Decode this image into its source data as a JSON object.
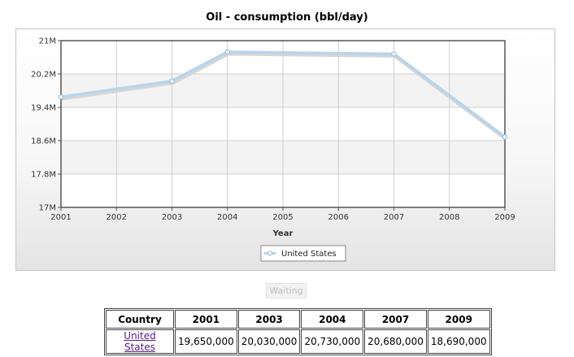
{
  "chart_data": {
    "type": "line",
    "title": "Oil - consumption (bbl/day)",
    "xlabel": "Year",
    "ylabel": "",
    "x_ticks": [
      "2001",
      "2002",
      "2003",
      "2004",
      "2005",
      "2006",
      "2007",
      "2008",
      "2009"
    ],
    "x_range": [
      2001,
      2009
    ],
    "y_ticks": [
      "17M",
      "17.8M",
      "18.6M",
      "19.4M",
      "20.2M",
      "21M"
    ],
    "ylim": [
      17000000,
      21000000
    ],
    "grid": true,
    "legend_position": "bottom-center",
    "series": [
      {
        "name": "United States",
        "color": "#b8d4ea",
        "x": [
          2001,
          2003,
          2004,
          2007,
          2009
        ],
        "values": [
          19650000,
          20030000,
          20730000,
          20680000,
          18690000
        ]
      }
    ]
  },
  "controls": {
    "waiting_label": "Waiting"
  },
  "table": {
    "headers": [
      "Country",
      "2001",
      "2003",
      "2004",
      "2007",
      "2009"
    ],
    "row": {
      "country": "United States",
      "values": [
        "19,650,000",
        "20,030,000",
        "20,730,000",
        "20,680,000",
        "18,690,000"
      ]
    }
  }
}
